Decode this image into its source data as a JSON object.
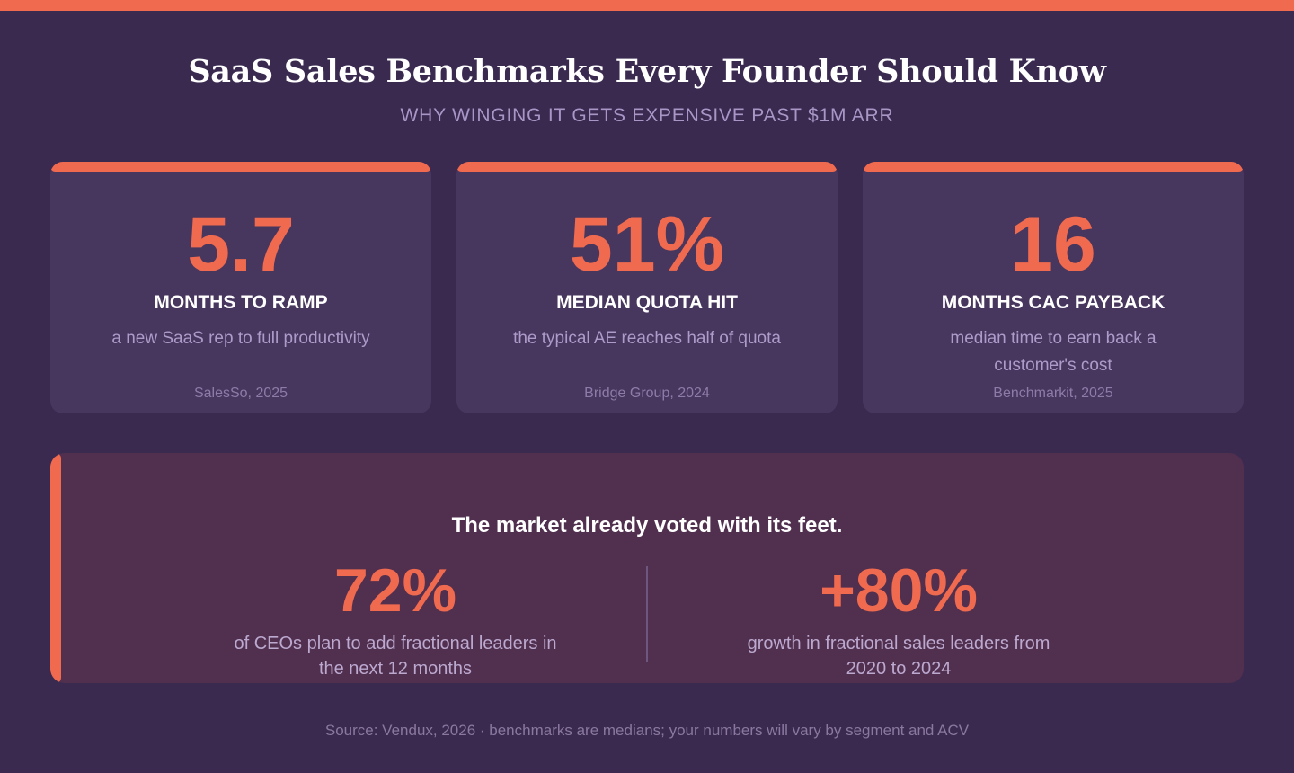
{
  "header": {
    "title": "SaaS Sales Benchmarks Every Founder Should Know",
    "subtitle": "WHY WINGING IT GETS EXPENSIVE PAST $1M ARR"
  },
  "colors": {
    "background": "#3a2a50",
    "accent": "#ef6a4f",
    "card": "#47365e",
    "panel": "#512f4f"
  },
  "benchmarks": [
    {
      "value": "5.7",
      "label": "MONTHS TO RAMP",
      "description": "a new SaaS rep to full productivity",
      "source": "SalesSo, 2025"
    },
    {
      "value": "51%",
      "label": "MEDIAN QUOTA HIT",
      "description": "the typical AE reaches half of quota",
      "source": "Bridge Group, 2024"
    },
    {
      "value": "16",
      "label": "MONTHS CAC PAYBACK",
      "description": "median time to earn back a customer's cost",
      "source": "Benchmarkit, 2025"
    }
  ],
  "market": {
    "heading": "The market already voted with its feet.",
    "stats": [
      {
        "value": "72%",
        "description": "of CEOs plan to add fractional leaders in the next 12 months"
      },
      {
        "value": "+80%",
        "description": "growth in fractional sales leaders from 2020 to 2024"
      }
    ]
  },
  "footer": {
    "text": "Source: Vendux, 2026 · benchmarks are medians; your numbers will vary by segment and ACV"
  }
}
